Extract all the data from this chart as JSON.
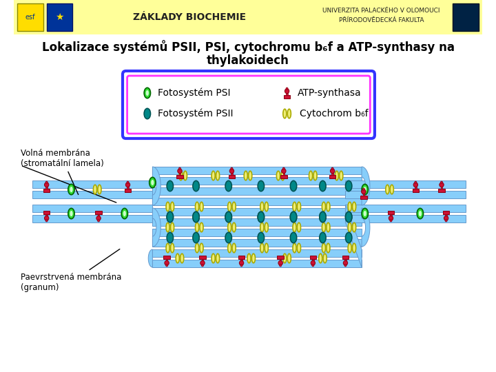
{
  "bg_color": "#FFFFFF",
  "header_bg": "#FFFF99",
  "membrane_color": "#87CEFA",
  "membrane_edge": "#6699CC",
  "psi_outer": "#33DD33",
  "psi_inner": "#CCFFCC",
  "psi_edge": "#006600",
  "psii_color": "#008888",
  "psii_edge": "#005555",
  "atp_color": "#CC1133",
  "atp_edge": "#880011",
  "cytb6f_color": "#EEEE77",
  "cytb6f_edge": "#AAAA00",
  "legend_outer_color": "#3333FF",
  "legend_inner_color": "#FF33FF",
  "title1": "Lokalizace systémů PSII, PSI, cytochromu b₆f a ATP-synthasy na",
  "title2": "thylakoidech",
  "legend_label_psi": "Fotosystém PSI",
  "legend_label_atp": "ATP-synthasa",
  "legend_label_psii": "Fotosystém PSII",
  "legend_label_cyt": "Cytochrom b₆f",
  "label_volna1": "Volná membrána",
  "label_volna2": "(stromatální lamela)",
  "label_granum1": "Paevrstrvená membrána",
  "label_granum2": "(granum)"
}
